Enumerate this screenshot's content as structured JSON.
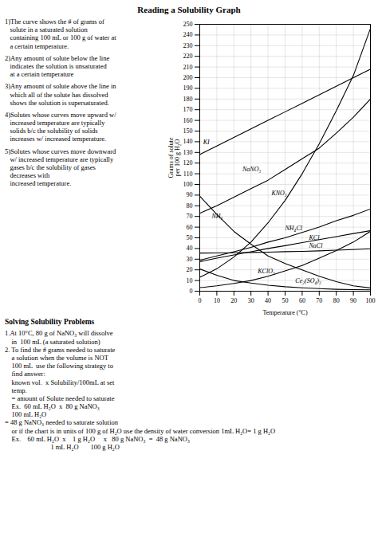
{
  "chart_data": {
    "type": "line",
    "title": "Reading a Solubility Graph",
    "x_label": "Temperature (°C)",
    "y_label": "Grams of solute\nper 100 g H₂O",
    "x": [
      0,
      10,
      20,
      30,
      40,
      50,
      60,
      70,
      80,
      90,
      100
    ],
    "series": [
      {
        "name": "KI",
        "color": "black",
        "values": [
          128,
          136,
          144,
          152,
          160,
          168,
          176,
          184,
          192,
          200,
          208
        ]
      },
      {
        "name": "NaNO₃",
        "color": "black",
        "values": [
          73,
          80,
          88,
          96,
          104,
          114,
          124,
          134,
          148,
          163,
          180
        ]
      },
      {
        "name": "KNO₃",
        "color": "black",
        "values": [
          13,
          21,
          32,
          46,
          64,
          85,
          110,
          138,
          169,
          202,
          246
        ]
      },
      {
        "name": "NH₃",
        "color": "black",
        "values": [
          89,
          72,
          56,
          44,
          33,
          26,
          20,
          14,
          9,
          5,
          3
        ]
      },
      {
        "name": "NH₄Cl",
        "color": "black",
        "values": [
          29,
          33,
          37,
          41,
          46,
          50,
          55,
          60,
          66,
          71,
          77
        ]
      },
      {
        "name": "KCl",
        "color": "black",
        "values": [
          27.6,
          31,
          34,
          37,
          40,
          42.6,
          45.5,
          48.3,
          51.1,
          54,
          56.7
        ]
      },
      {
        "name": "NaCl",
        "color": "black",
        "values": [
          35.7,
          35.8,
          36,
          36.3,
          36.6,
          37,
          37.3,
          37.8,
          38.4,
          39,
          39.8
        ]
      },
      {
        "name": "KClO₃",
        "color": "black",
        "values": [
          3.3,
          5,
          7.3,
          10,
          14,
          19,
          24,
          31,
          38,
          46,
          56
        ]
      },
      {
        "name": "Ce₂(SO₄)₃",
        "color": "black",
        "values": [
          20.8,
          15,
          10,
          7.6,
          5.6,
          4.2,
          3.2,
          2.4,
          1.8,
          1.5,
          1.3
        ]
      }
    ],
    "xlim": [
      0,
      100
    ],
    "ylim": [
      0,
      250
    ],
    "xticks": [
      0,
      10,
      20,
      30,
      40,
      50,
      60,
      70,
      80,
      90,
      100
    ],
    "yticks": [
      0,
      10,
      20,
      30,
      40,
      50,
      60,
      70,
      80,
      90,
      100,
      110,
      120,
      130,
      140,
      150,
      160,
      170,
      180,
      190,
      200,
      210,
      220,
      230,
      240,
      250
    ],
    "grid": true,
    "annotations": [
      {
        "text": "KI",
        "x": 2,
        "y": 138
      },
      {
        "text": "NaNO₃",
        "x": 25,
        "y": 112
      },
      {
        "text": "KNO₃",
        "x": 42,
        "y": 90
      },
      {
        "text": "NH₃",
        "x": 7,
        "y": 68
      },
      {
        "text": "NH₄Cl",
        "x": 50,
        "y": 57
      },
      {
        "text": "KCl",
        "x": 64,
        "y": 48
      },
      {
        "text": "NaCl",
        "x": 64,
        "y": 41
      },
      {
        "text": "KClO₃",
        "x": 34,
        "y": 17
      },
      {
        "text": "Ce₂(SO₄)₃",
        "x": 56,
        "y": 8
      }
    ],
    "notes": [
      "1)The curve shows the # of grams of\n   solute in a saturated solution\n   containing 100 mL or 100 g of water at\n   a certain temperature.",
      "2)Any amount of solute below the line\n   indicates the solution is unsaturated\n   at a certain temperature",
      "3)Any amount of solute above the line in\n   which all of the solute has dissolved\n   shows the solution is supersaturated.",
      "4)Solutes whose curves move upward w/\n   increased temperature are typically\n   solids b/c the solubility of solids\n   increases w/ increased temperature.",
      "5)Solutes whose curves move downward\n   w/ increased temperature are typically\n   gases b/c the solubility of gases\n   decreases with\n   increased temperature."
    ],
    "solving_header": "Solving Solubility Problems",
    "solving": [
      "1.At 10°C, 80 g of NaNO₃ will dissolve",
      "    in  100 mL (a saturated solution)",
      "2. To find the # grams needed to saturate",
      "    a solution when the volume is NOT",
      "    100 mL  use the following strategy to",
      "    find answer:",
      "    known vol.  x Solubility/100mL at set",
      "    temp.",
      "    = amount of Solute needed to saturate",
      "    Ex.  60 mL H₂O  x  80 g NaNO₃",
      "    100 mL H₂O",
      "= 48 g NaNO₃ needed to saturate solution",
      "    or if the chart is in units of 100 g of H₂O use the density of water conversion 1mL H₂O= 1 g H₂O",
      "    Ex.    60 mL H₂O  x    1 g H₂O     x   80 g NaNO₃  =  48 g NaNO₃",
      "                           1 mL H₂O       100 g H₂O"
    ]
  }
}
